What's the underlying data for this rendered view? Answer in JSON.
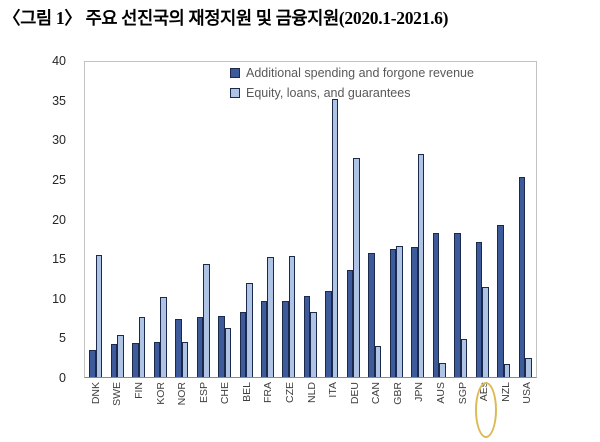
{
  "title": {
    "text": "〈그림 1〉 주요 선진국의 재정지원 및 금융지원(2020.1-2021.6)"
  },
  "chart_data": {
    "type": "bar",
    "title": "〈그림 1〉 주요 선진국의 재정지원 및 금융지원(2020.1-2021.6)",
    "xlabel": "",
    "ylabel": "",
    "ylim": [
      0,
      40
    ],
    "yticks": [
      0,
      5,
      10,
      15,
      20,
      25,
      30,
      35,
      40
    ],
    "grid": false,
    "legend_position": "top-inside",
    "categories": [
      "DNK",
      "SWE",
      "FIN",
      "KOR",
      "NOR",
      "ESP",
      "CHE",
      "BEL",
      "FRA",
      "CZE",
      "NLD",
      "ITA",
      "DEU",
      "CAN",
      "GBR",
      "JPN",
      "AUS",
      "SGP",
      "AEs",
      "NZL",
      "USA"
    ],
    "series": [
      {
        "name": "Additional spending and forgone revenue",
        "color": "#3d5b9b",
        "border_color": "#1b2a4a",
        "values": [
          3.4,
          4.2,
          4.3,
          4.5,
          7.4,
          7.6,
          7.8,
          8.3,
          9.6,
          9.6,
          10.3,
          10.9,
          13.6,
          15.8,
          16.2,
          16.5,
          18.3,
          18.3,
          17.2,
          19.3,
          25.4
        ]
      },
      {
        "name": "Equity, loans, and guarantees",
        "color": "#afc3e4",
        "border_color": "#1b2a4a",
        "values": [
          15.5,
          5.3,
          7.6,
          10.1,
          4.5,
          14.4,
          6.2,
          11.9,
          15.2,
          15.4,
          8.2,
          35.3,
          27.8,
          4.0,
          16.7,
          28.3,
          1.8,
          4.8,
          11.4,
          1.7,
          2.4
        ]
      }
    ],
    "annotation": {
      "shape": "ellipse",
      "stroke_color": "#dcba55",
      "target_category": "AEs"
    }
  }
}
